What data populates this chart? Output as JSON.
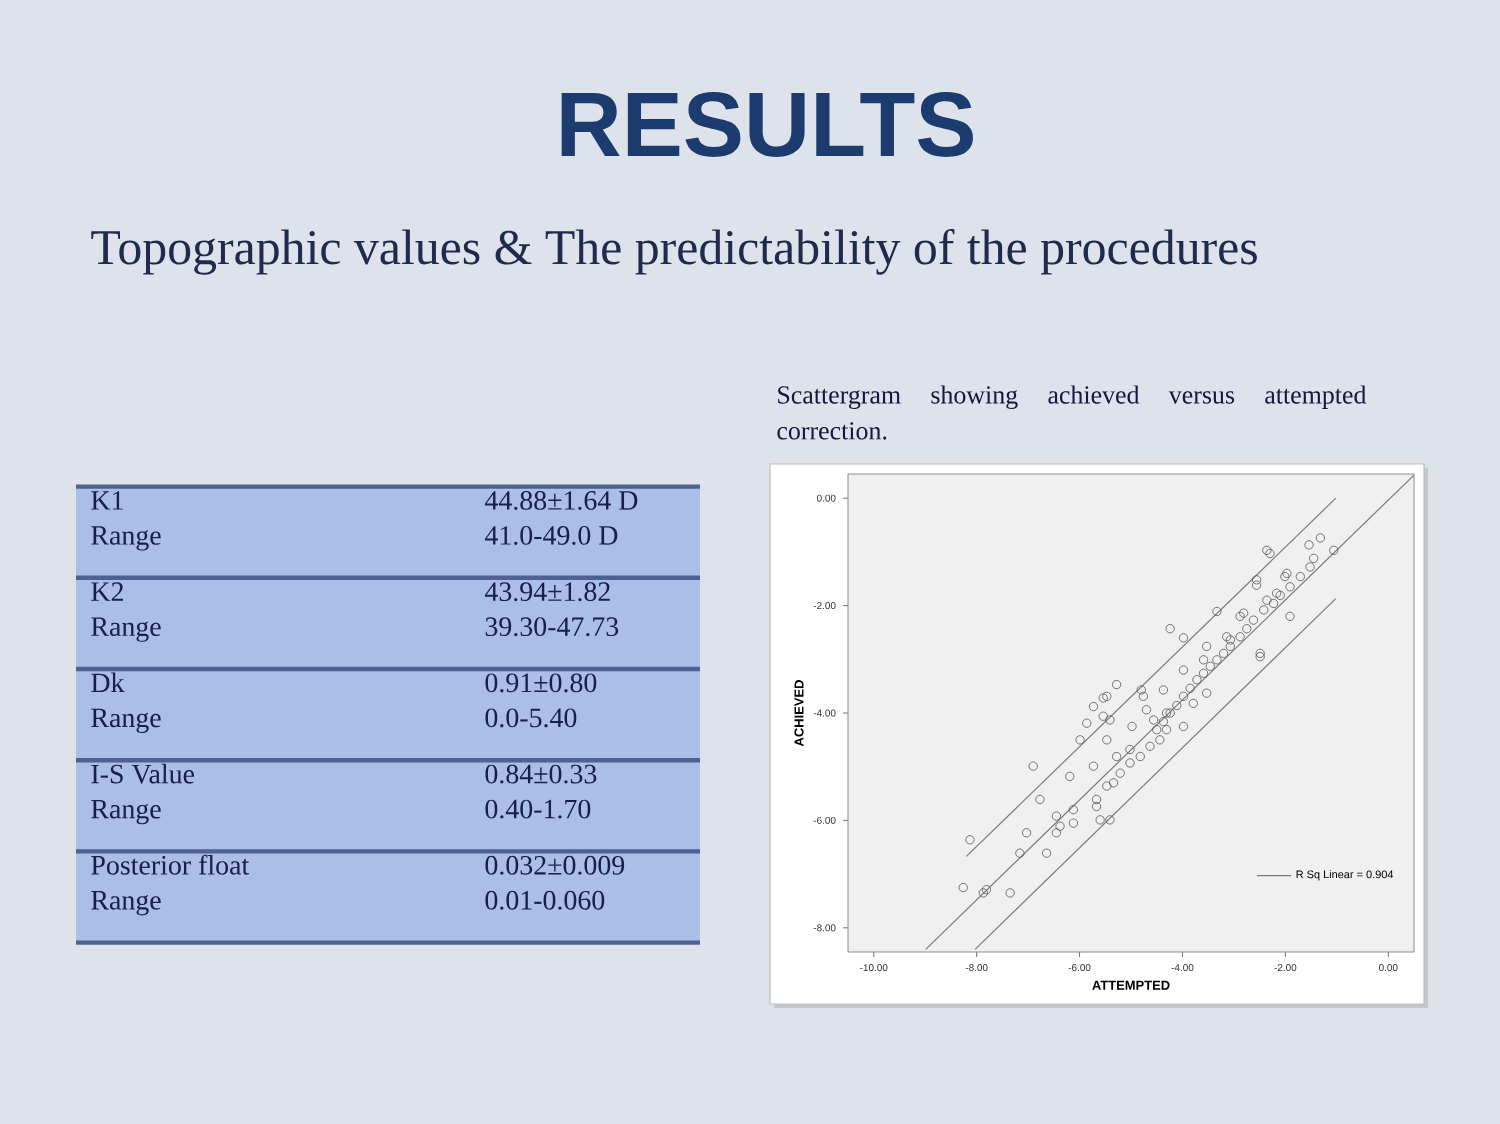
{
  "chart_data": [
    {
      "type": "other",
      "title": "RESULTS",
      "subtitle": "Topographic values & The predictability of the procedures",
      "annotations": [
        "K1",
        "44.88±1.64 D",
        "Range",
        "41.0-49.0 D",
        "K2",
        "43.94±1.82",
        "Range",
        "39.30-47.73",
        "Dk",
        "0.91±0.80",
        "Range",
        "0.0-5.40",
        "I-S Value",
        "0.84±0.33",
        "Range",
        "0.40-1.70",
        "Posterior float",
        "0.032±0.009",
        "Range",
        "0.01-0.060"
      ]
    },
    {
      "type": "scatter",
      "title": "Scattergram showing achieved versus attempted correction.",
      "xlabel": "ATTEMPTED",
      "ylabel": "ACHIEVED",
      "xlim": [
        -10.5,
        0.5
      ],
      "ylim": [
        -8.45,
        0.45
      ],
      "xticks": [
        {
          "value": -10,
          "label": "-10.00"
        },
        {
          "value": -8,
          "label": "-8.00"
        },
        {
          "value": -6,
          "label": "-6.00"
        },
        {
          "value": -4,
          "label": "-4.00"
        },
        {
          "value": -2,
          "label": "-2.00"
        },
        {
          "value": 0,
          "label": "0.00"
        }
      ],
      "yticks": [
        {
          "value": -8,
          "label": "-8.00"
        },
        {
          "value": -6,
          "label": "-6.00"
        },
        {
          "value": -4,
          "label": "-4.00"
        },
        {
          "value": -2,
          "label": "-2.00"
        },
        {
          "value": 0,
          "label": "0.00"
        }
      ],
      "legend": "bottom right",
      "series": [
        {
          "type": "scatter",
          "marker": "circle",
          "color": "#555555",
          "x": [
            -1.32,
            -1.54,
            -1.06,
            -1.45,
            -2.3,
            -1.52,
            -2.01,
            -2.56,
            -2.17,
            -2.81,
            -2.88,
            -3.33,
            -4.24,
            -3.98,
            -3.53,
            -2.49,
            -3.14,
            -3.59,
            -3.98,
            -4.37,
            -4.8,
            -5.28,
            -5.47,
            -5.73,
            -5.54,
            -5.86,
            -4.7,
            -4.31,
            -3.98,
            -1.71,
            -1.91,
            -2.1,
            -2.23,
            -2.42,
            -2.62,
            -2.75,
            -2.88,
            -3.07,
            -3.2,
            -3.33,
            -3.46,
            -3.59,
            -3.72,
            -3.85,
            -3.98,
            -4.11,
            -4.24,
            -4.37,
            -4.5,
            -5.54,
            -4.76,
            -5.41,
            -5.99,
            -5.47,
            -4.98,
            -4.56,
            -6.9,
            -6.19,
            -5.73,
            -5.28,
            -5.02,
            -4.82,
            -6.77,
            -6.45,
            -6.12,
            -6.38,
            -6.12,
            -5.67,
            -5.47,
            -5.6,
            -7.03,
            -6.45,
            -8.13,
            -6.64,
            -7.16,
            -8.26,
            -7.81,
            -7.35,
            -7.87,
            -3.53,
            -3.79,
            -4.31,
            -4.44,
            -4.63,
            -5.21,
            -5.34,
            -5.67,
            -5.41,
            -5.02,
            -2.36,
            -1.97,
            -3.07,
            -2.49,
            -1.91,
            -2.56,
            -2.36
          ],
          "values": [
            -0.74,
            -0.87,
            -0.97,
            -1.12,
            -1.03,
            -1.28,
            -1.46,
            -1.62,
            -1.77,
            -2.14,
            -2.2,
            -2.11,
            -2.43,
            -2.6,
            -2.76,
            -2.89,
            -2.58,
            -3.01,
            -3.2,
            -3.57,
            -3.57,
            -3.47,
            -3.69,
            -3.88,
            -4.06,
            -4.19,
            -3.94,
            -4.0,
            -4.25,
            -1.46,
            -1.65,
            -1.81,
            -1.96,
            -2.08,
            -2.27,
            -2.43,
            -2.58,
            -2.76,
            -2.89,
            -3.01,
            -3.13,
            -3.26,
            -3.38,
            -3.54,
            -3.69,
            -3.86,
            -4.0,
            -4.16,
            -4.31,
            -3.72,
            -3.69,
            -4.13,
            -4.5,
            -4.5,
            -4.25,
            -4.13,
            -4.99,
            -5.18,
            -4.99,
            -4.81,
            -4.68,
            -4.81,
            -5.61,
            -5.92,
            -5.8,
            -6.11,
            -6.05,
            -5.61,
            -5.36,
            -5.99,
            -6.23,
            -6.23,
            -6.36,
            -6.61,
            -6.61,
            -7.25,
            -7.29,
            -7.35,
            -7.35,
            -3.63,
            -3.82,
            -4.31,
            -4.5,
            -4.62,
            -5.12,
            -5.3,
            -5.74,
            -5.99,
            -4.93,
            -0.97,
            -1.4,
            -2.64,
            -2.95,
            -2.2,
            -1.52,
            -1.9
          ]
        },
        {
          "type": "line",
          "name": "R Sq Linear = 0.904",
          "color": "#7a7a7a",
          "x": [
            -8.99,
            0.5
          ],
          "values": [
            -8.4,
            0.43
          ]
        },
        {
          "type": "line",
          "color": "#7a7a7a",
          "x": [
            -8.2,
            -1.02
          ],
          "values": [
            -6.67,
            0.0
          ]
        },
        {
          "type": "line",
          "color": "#7a7a7a",
          "x": [
            -8.03,
            -1.02
          ],
          "values": [
            -8.4,
            -1.87
          ]
        }
      ]
    }
  ]
}
